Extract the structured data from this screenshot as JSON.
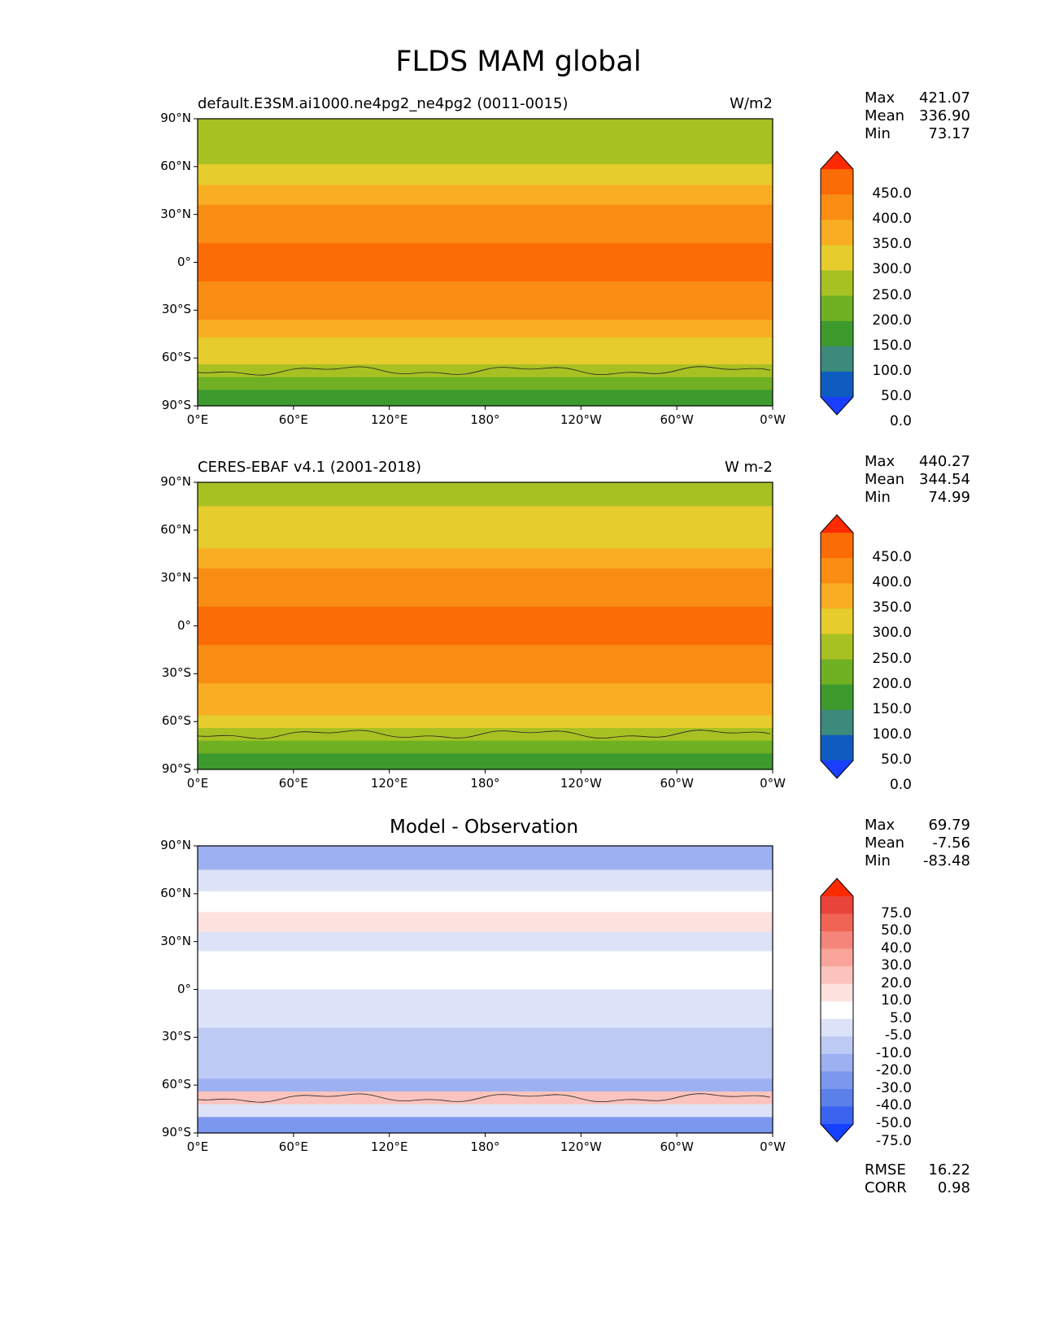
{
  "title": "FLDS MAM global",
  "lat_ticks": [
    "90°N",
    "60°N",
    "30°N",
    "0°",
    "30°S",
    "60°S",
    "90°S"
  ],
  "lon_ticks": [
    "0°E",
    "60°E",
    "120°E",
    "180°",
    "120°W",
    "60°W",
    "0°W"
  ],
  "colors": {
    "abs_levels": [
      "#1a3fff",
      "#0e5cc0",
      "#3b8a7c",
      "#3d9b2e",
      "#70b023",
      "#a7c123",
      "#e6cc2c",
      "#f8ad22",
      "#f98c13",
      "#fb6b06",
      "#ff2a00"
    ],
    "diff_levels": [
      "#1540ff",
      "#3a63ef",
      "#5c80ea",
      "#7c98ee",
      "#9db0f1",
      "#bccaf4",
      "#dce3f8",
      "#ffffff",
      "#fde1de",
      "#fbc3bd",
      "#f8a49b",
      "#f5857a",
      "#ef6453",
      "#e9443a",
      "#ff2a00"
    ]
  },
  "chart_data": [
    {
      "type": "heatmap",
      "name": "test",
      "left_title": "default.E3SM.ai1000.ne4pg2_ne4pg2 (0011-0015)",
      "right_title": "W/m2",
      "stats": {
        "max": "421.07",
        "mean": "336.90",
        "min": "73.17"
      },
      "colorbar_labels": [
        "450.0",
        "400.0",
        "350.0",
        "300.0",
        "250.0",
        "200.0",
        "150.0",
        "100.0",
        "50.0",
        "0.0"
      ],
      "xlim": [
        0,
        360
      ],
      "ylim": [
        -90,
        90
      ],
      "lat_bands": [
        {
          "lat": 82,
          "value": 210
        },
        {
          "lat": 68,
          "value": 230
        },
        {
          "lat": 55,
          "value": 270
        },
        {
          "lat": 42,
          "value": 305
        },
        {
          "lat": 30,
          "value": 355
        },
        {
          "lat": 18,
          "value": 385
        },
        {
          "lat": 6,
          "value": 410
        },
        {
          "lat": -6,
          "value": 410
        },
        {
          "lat": -18,
          "value": 385
        },
        {
          "lat": -30,
          "value": 350
        },
        {
          "lat": -42,
          "value": 320
        },
        {
          "lat": -52,
          "value": 290
        },
        {
          "lat": -60,
          "value": 260
        },
        {
          "lat": -68,
          "value": 220
        },
        {
          "lat": -76,
          "value": 180
        },
        {
          "lat": -84,
          "value": 140
        }
      ]
    },
    {
      "type": "heatmap",
      "name": "reference",
      "left_title": "CERES-EBAF v4.1 (2001-2018)",
      "right_title": "W m-2",
      "stats": {
        "max": "440.27",
        "mean": "344.54",
        "min": "74.99"
      },
      "colorbar_labels": [
        "450.0",
        "400.0",
        "350.0",
        "300.0",
        "250.0",
        "200.0",
        "150.0",
        "100.0",
        "50.0",
        "0.0"
      ],
      "xlim": [
        0,
        360
      ],
      "ylim": [
        -90,
        90
      ],
      "lat_bands": [
        {
          "lat": 82,
          "value": 230
        },
        {
          "lat": 68,
          "value": 260
        },
        {
          "lat": 55,
          "value": 290
        },
        {
          "lat": 42,
          "value": 320
        },
        {
          "lat": 30,
          "value": 360
        },
        {
          "lat": 18,
          "value": 395
        },
        {
          "lat": 6,
          "value": 420
        },
        {
          "lat": -6,
          "value": 415
        },
        {
          "lat": -18,
          "value": 390
        },
        {
          "lat": -30,
          "value": 360
        },
        {
          "lat": -42,
          "value": 330
        },
        {
          "lat": -52,
          "value": 300
        },
        {
          "lat": -60,
          "value": 270
        },
        {
          "lat": -68,
          "value": 210
        },
        {
          "lat": -76,
          "value": 170
        },
        {
          "lat": -84,
          "value": 140
        }
      ]
    },
    {
      "type": "heatmap",
      "name": "difference",
      "title": "Model - Observation",
      "stats": {
        "max": "69.79",
        "mean": "-7.56",
        "min": "-83.48"
      },
      "colorbar_labels": [
        "75.0",
        "50.0",
        "40.0",
        "30.0",
        "20.0",
        "10.0",
        "5.0",
        "-5.0",
        "-10.0",
        "-20.0",
        "-30.0",
        "-40.0",
        "-50.0",
        "-75.0"
      ],
      "error_stats": {
        "rmse_label": "RMSE",
        "rmse": "16.22",
        "corr_label": "CORR",
        "corr": "0.98"
      },
      "xlim": [
        0,
        360
      ],
      "ylim": [
        -90,
        90
      ],
      "lat_bands": [
        {
          "lat": 82,
          "value": -25
        },
        {
          "lat": 68,
          "value": -10
        },
        {
          "lat": 55,
          "value": 0
        },
        {
          "lat": 42,
          "value": 5
        },
        {
          "lat": 30,
          "value": -8
        },
        {
          "lat": 18,
          "value": -5
        },
        {
          "lat": 6,
          "value": 0
        },
        {
          "lat": -6,
          "value": -8
        },
        {
          "lat": -18,
          "value": -10
        },
        {
          "lat": -30,
          "value": -12
        },
        {
          "lat": -42,
          "value": -18
        },
        {
          "lat": -52,
          "value": -12
        },
        {
          "lat": -60,
          "value": -30
        },
        {
          "lat": -68,
          "value": 15
        },
        {
          "lat": -76,
          "value": -10
        },
        {
          "lat": -84,
          "value": -40
        }
      ]
    }
  ]
}
